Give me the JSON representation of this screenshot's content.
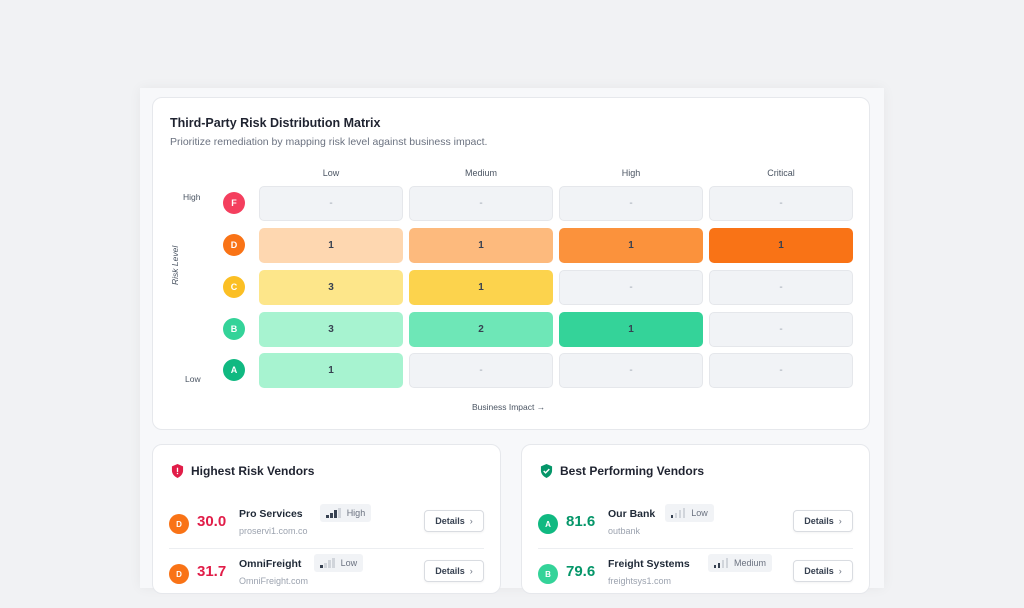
{
  "matrix": {
    "title": "Third-Party Risk Distribution Matrix",
    "subtitle": "Prioritize remediation by mapping risk level against business impact.",
    "columns": [
      "Low",
      "Medium",
      "High",
      "Critical"
    ],
    "y_high": "High",
    "y_low": "Low",
    "y_axis": "Risk Level",
    "x_axis": "Business Impact →",
    "rows": [
      {
        "grade": "F",
        "color": "#f43f5e",
        "cells": [
          "-",
          "-",
          "-",
          "-"
        ],
        "fills": [
          null,
          null,
          null,
          null
        ]
      },
      {
        "grade": "D",
        "color": "#f97316",
        "cells": [
          "1",
          "1",
          "1",
          "1"
        ],
        "fills": [
          "#fed7b0",
          "#fdba7d",
          "#fb923c",
          "#f97316"
        ]
      },
      {
        "grade": "C",
        "color": "#fbbf24",
        "cells": [
          "3",
          "1",
          "-",
          "-"
        ],
        "fills": [
          "#fde68a",
          "#fcd34d",
          null,
          null
        ]
      },
      {
        "grade": "B",
        "color": "#34d399",
        "cells": [
          "3",
          "2",
          "1",
          "-"
        ],
        "fills": [
          "#a7f3d0",
          "#6ee7b7",
          "#34d399",
          null
        ]
      },
      {
        "grade": "A",
        "color": "#10b981",
        "cells": [
          "1",
          "-",
          "-",
          "-"
        ],
        "fills": [
          "#a7f3d0",
          null,
          null,
          null
        ]
      }
    ]
  },
  "highest": {
    "title": "Highest Risk Vendors",
    "icon": "shield-alert-icon",
    "vendors": [
      {
        "grade": "D",
        "score": "30.0",
        "name": "Pro Services",
        "level": "High",
        "bars": 3,
        "domain": "proservi1.com.co",
        "details": "Details"
      },
      {
        "grade": "D",
        "score": "31.7",
        "name": "OmniFreight",
        "level": "Low",
        "bars": 1,
        "domain": "OmniFreight.com",
        "details": "Details"
      }
    ]
  },
  "best": {
    "title": "Best Performing Vendors",
    "icon": "shield-check-icon",
    "vendors": [
      {
        "grade": "A",
        "score": "81.6",
        "name": "Our Bank",
        "level": "Low",
        "bars": 1,
        "domain": "outbank",
        "details": "Details"
      },
      {
        "grade": "B",
        "score": "79.6",
        "name": "Freight Systems",
        "level": "Medium",
        "bars": 2,
        "domain": "freightsys1.com",
        "details": "Details"
      }
    ]
  },
  "colors": {
    "risk": "#e11d48",
    "good": "#059669",
    "D": "#f97316",
    "A": "#10b981",
    "B": "#34d399"
  }
}
